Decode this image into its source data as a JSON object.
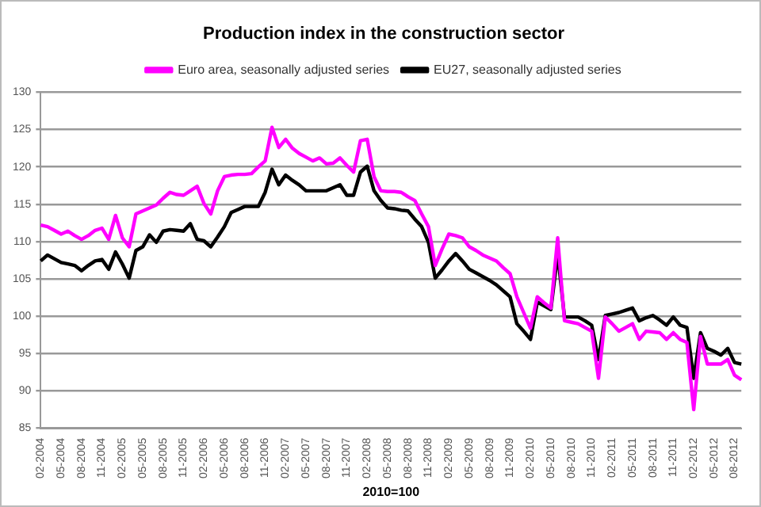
{
  "chart_data": {
    "type": "line",
    "title": "Production index in the construction sector",
    "xlabel": "2010=100",
    "categories": [
      "02-2004",
      null,
      null,
      "05-2004",
      null,
      null,
      "08-2004",
      null,
      null,
      "11-2004",
      null,
      null,
      "02-2005",
      null,
      null,
      "05-2005",
      null,
      null,
      "08-2005",
      null,
      null,
      "11-2005",
      null,
      null,
      "02-2006",
      null,
      null,
      "05-2006",
      null,
      null,
      "08-2006",
      null,
      null,
      "11-2006",
      null,
      null,
      "02-2007",
      null,
      null,
      "05-2007",
      null,
      null,
      "08-2007",
      null,
      null,
      "11-2007",
      null,
      null,
      "02-2008",
      null,
      null,
      "05-2008",
      null,
      null,
      "08-2008",
      null,
      null,
      "11-2008",
      null,
      null,
      "02-2009",
      null,
      null,
      "05-2009",
      null,
      null,
      "08-2009",
      null,
      null,
      "11-2009",
      null,
      null,
      "02-2010",
      null,
      null,
      "05-2010",
      null,
      null,
      "08-2010",
      null,
      null,
      "11-2010",
      null,
      null,
      "02-2011",
      null,
      null,
      "05-2011",
      null,
      null,
      "08-2011",
      null,
      null,
      "11-2011",
      null,
      null,
      "02-2012",
      null,
      null,
      "05-2012",
      null,
      null,
      "08-2012",
      null
    ],
    "series": [
      {
        "name": "Euro area, seasonally adjusted series",
        "color": "#ff00ff",
        "values": [
          112.2,
          112,
          111.5,
          111,
          111.4,
          110.8,
          110.3,
          110.8,
          111.5,
          111.8,
          110.3,
          113.5,
          110.5,
          109.3,
          113.7,
          114.1,
          114.5,
          114.9,
          115.8,
          116.6,
          116.3,
          116.2,
          116.8,
          117.4,
          115.1,
          113.7,
          116.8,
          118.7,
          118.9,
          119,
          119,
          119.1,
          120,
          120.8,
          125.3,
          122.6,
          123.7,
          122.5,
          121.8,
          121.3,
          120.8,
          121.2,
          120.4,
          120.5,
          121.2,
          120.2,
          119.3,
          123.5,
          123.7,
          118.7,
          116.8,
          116.7,
          116.7,
          116.6,
          116,
          115.5,
          113.7,
          112,
          106.8,
          109,
          111,
          110.8,
          110.5,
          109.3,
          108.8,
          108.2,
          107.8,
          107.4,
          106.5,
          105.7,
          102.6,
          100.5,
          98.4,
          102.6,
          101.8,
          101.1,
          110.5,
          99.4,
          99.2,
          99,
          98.5,
          98,
          91.7,
          99.9,
          99,
          98,
          98.5,
          99,
          96.9,
          98,
          97.9,
          97.8,
          96.9,
          97.8,
          96.9,
          96.5,
          87.5,
          97.3,
          93.6,
          93.6,
          93.6,
          94.2,
          92.1,
          91.5
        ]
      },
      {
        "name": "EU27, seasonally adjusted series",
        "color": "#000000",
        "values": [
          107.4,
          108.2,
          107.7,
          107.2,
          107,
          106.8,
          106.1,
          106.8,
          107.4,
          107.6,
          106.3,
          108.6,
          107,
          105.1,
          108.8,
          109.3,
          110.9,
          109.9,
          111.4,
          111.6,
          111.5,
          111.4,
          112.4,
          110.3,
          110.1,
          109.3,
          110.6,
          112,
          113.9,
          114.3,
          114.7,
          114.7,
          114.7,
          116.6,
          119.7,
          117.6,
          118.9,
          118.2,
          117.6,
          116.8,
          116.8,
          116.8,
          116.8,
          117.2,
          117.6,
          116.2,
          116.2,
          119.3,
          120.1,
          116.8,
          115.5,
          114.5,
          114.4,
          114.2,
          114.1,
          113,
          112,
          109.9,
          105.1,
          106.2,
          107.4,
          108.4,
          107.4,
          106.3,
          105.8,
          105.3,
          104.8,
          104.2,
          103.4,
          102.6,
          99,
          98,
          96.9,
          101.9,
          101.4,
          100.9,
          108.4,
          99.9,
          99.9,
          99.9,
          99.4,
          98.8,
          94.2,
          100.1,
          100.3,
          100.5,
          100.8,
          101.1,
          99.4,
          99.8,
          100.1,
          99.5,
          98.8,
          99.9,
          98.8,
          98.5,
          91.7,
          97.8,
          95.7,
          95.3,
          94.8,
          95.7,
          93.8,
          93.6
        ]
      }
    ],
    "ylim": [
      85,
      130
    ],
    "yticks": [
      85,
      90,
      95,
      100,
      105,
      110,
      115,
      120,
      125,
      130
    ],
    "grid": "y",
    "legend": "top",
    "marker": "none",
    "line_style": "solid"
  }
}
